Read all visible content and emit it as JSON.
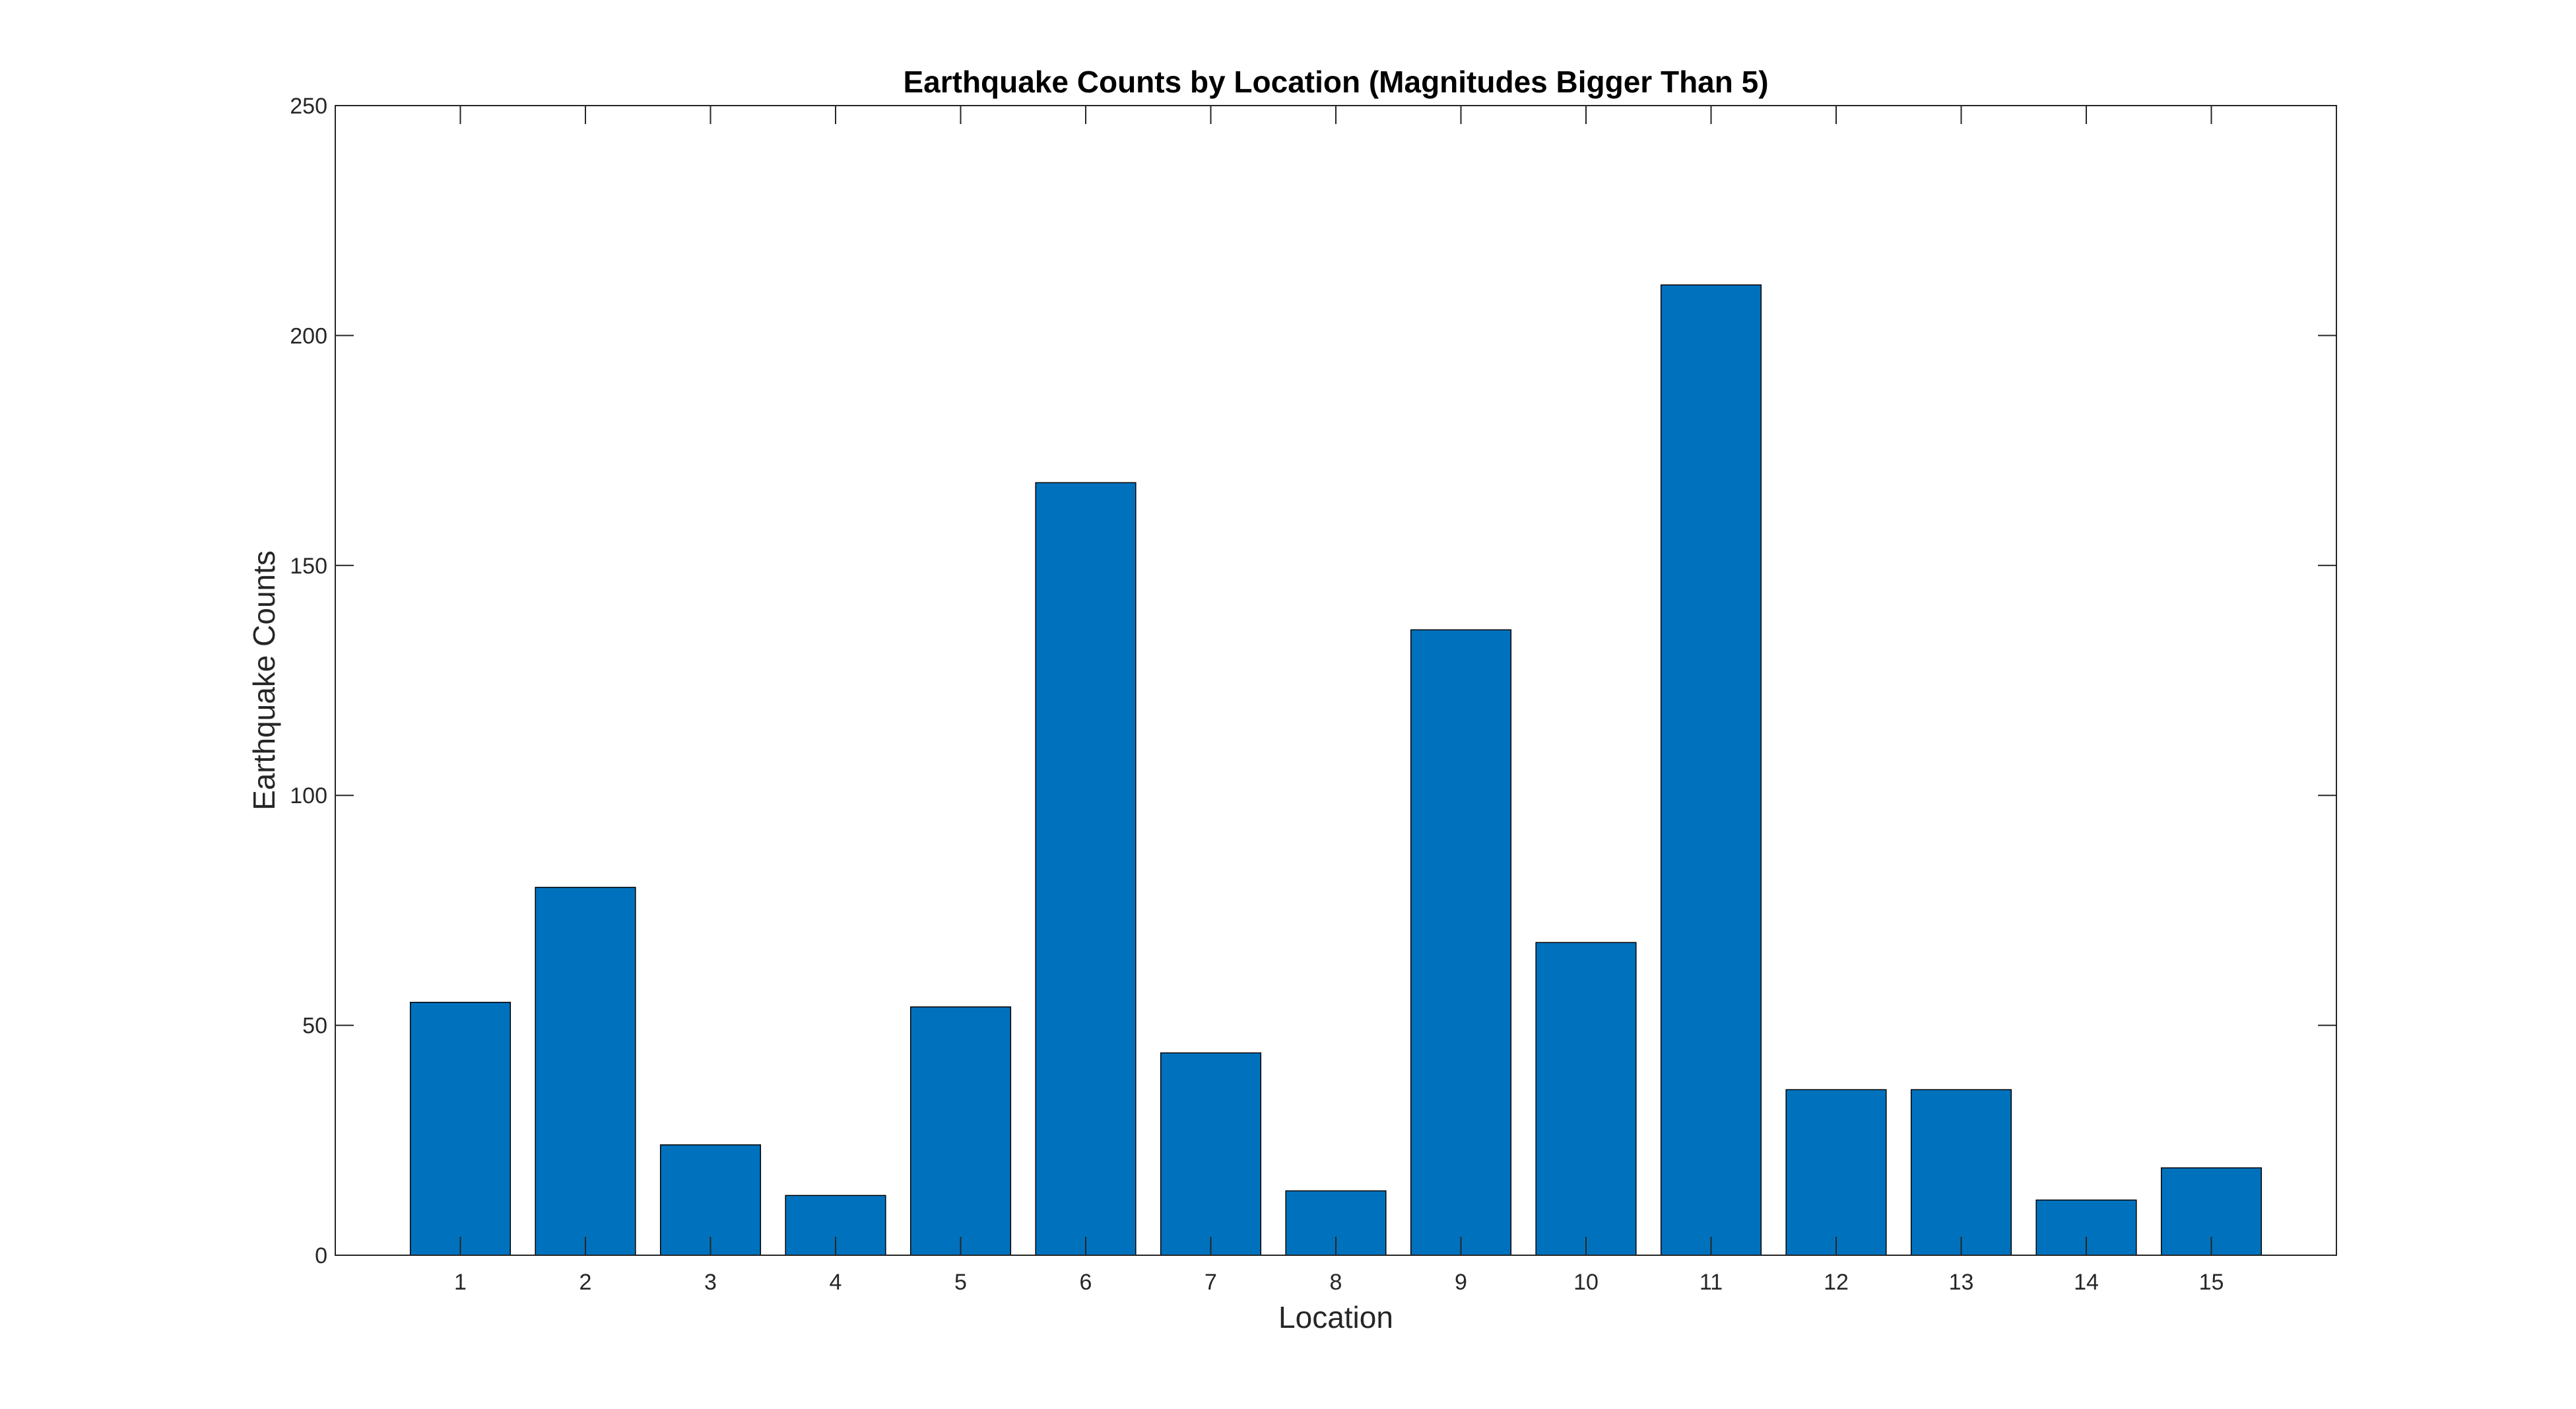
{
  "chart_data": {
    "type": "bar",
    "title": "Earthquake Counts by Location (Magnitudes Bigger Than 5)",
    "xlabel": "Location",
    "ylabel": "Earthquake Counts",
    "categories": [
      "1",
      "2",
      "3",
      "4",
      "5",
      "6",
      "7",
      "8",
      "9",
      "10",
      "11",
      "12",
      "13",
      "14",
      "15"
    ],
    "values": [
      55,
      80,
      24,
      13,
      54,
      168,
      44,
      14,
      136,
      68,
      211,
      36,
      36,
      12,
      19
    ],
    "ylim": [
      0,
      250
    ],
    "yticks": [
      "0",
      "50",
      "100",
      "150",
      "200",
      "250"
    ],
    "grid": false,
    "legend": "none",
    "colors": {
      "bar": "#0072BD",
      "edge": "#000000",
      "axes": "#262626"
    }
  }
}
